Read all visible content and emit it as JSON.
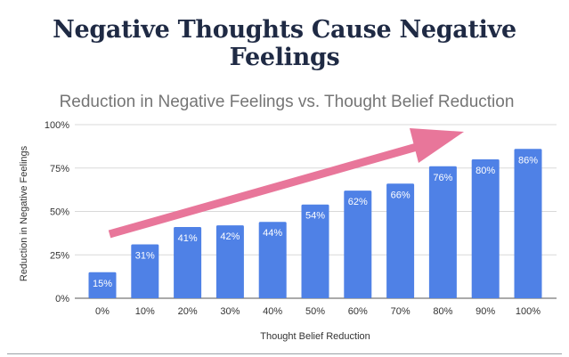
{
  "page_title": "Negative Thoughts Cause Negative Feelings",
  "chart_data": {
    "type": "bar",
    "title": "Reduction in Negative Feelings vs. Thought Belief Reduction",
    "xlabel": "Thought Belief Reduction",
    "ylabel": "Reduction in Negative Feelings",
    "categories": [
      "0%",
      "10%",
      "20%",
      "30%",
      "40%",
      "50%",
      "60%",
      "70%",
      "80%",
      "90%",
      "100%"
    ],
    "values": [
      15,
      31,
      41,
      42,
      44,
      54,
      62,
      66,
      76,
      80,
      86
    ],
    "data_labels": [
      "15%",
      "31%",
      "41%",
      "42%",
      "44%",
      "54%",
      "62%",
      "66%",
      "76%",
      "80%",
      "86%"
    ],
    "ylim": [
      0,
      100
    ],
    "yticks": [
      0,
      25,
      50,
      75,
      100
    ],
    "ytick_labels": [
      "0%",
      "25%",
      "50%",
      "75%",
      "100%"
    ],
    "grid": true,
    "bar_color": "#4f81e6",
    "annotation": {
      "type": "arrow",
      "color": "#e8769a",
      "direction": "up-right"
    }
  }
}
